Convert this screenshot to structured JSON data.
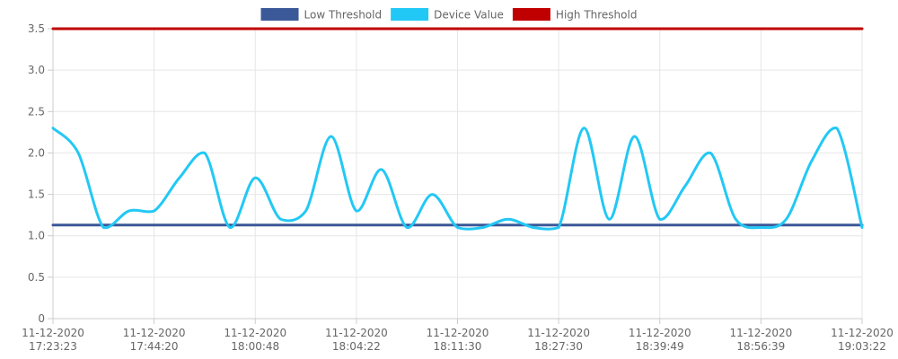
{
  "chart_data": {
    "type": "line",
    "title": "",
    "xlabel": "",
    "ylabel": "",
    "ylim": [
      0,
      3.5
    ],
    "yticks": [
      "0",
      "0.5",
      "1.0",
      "1.5",
      "2.0",
      "2.5",
      "3.0",
      "3.5"
    ],
    "ytick_values": [
      0,
      0.5,
      1.0,
      1.5,
      2.0,
      2.5,
      3.0,
      3.5
    ],
    "x_tick_labels": [
      {
        "date": "11-12-2020",
        "time": "17:23:23"
      },
      {
        "date": "11-12-2020",
        "time": "17:44:20"
      },
      {
        "date": "11-12-2020",
        "time": "18:00:48"
      },
      {
        "date": "11-12-2020",
        "time": "18:04:22"
      },
      {
        "date": "11-12-2020",
        "time": "18:11:30"
      },
      {
        "date": "11-12-2020",
        "time": "18:27:30"
      },
      {
        "date": "11-12-2020",
        "time": "18:39:49"
      },
      {
        "date": "11-12-2020",
        "time": "18:56:39"
      },
      {
        "date": "11-12-2020",
        "time": "19:03:22"
      }
    ],
    "point_count": 33,
    "legend": [
      "Low Threshold",
      "Device Value",
      "High Threshold"
    ],
    "series": [
      {
        "name": "Low Threshold",
        "color": "#3b5998",
        "values": [
          1.13,
          1.13,
          1.13,
          1.13,
          1.13,
          1.13,
          1.13,
          1.13,
          1.13,
          1.13,
          1.13,
          1.13,
          1.13,
          1.13,
          1.13,
          1.13,
          1.13,
          1.13,
          1.13,
          1.13,
          1.13,
          1.13,
          1.13,
          1.13,
          1.13,
          1.13,
          1.13,
          1.13,
          1.13,
          1.13,
          1.13,
          1.13,
          1.13
        ]
      },
      {
        "name": "Device Value",
        "color": "#22c8f5",
        "values": [
          2.3,
          2.0,
          1.1,
          1.3,
          1.3,
          1.7,
          2.0,
          1.1,
          1.7,
          1.2,
          1.3,
          2.2,
          1.3,
          1.8,
          1.1,
          1.5,
          1.1,
          1.1,
          1.2,
          1.1,
          1.1,
          2.3,
          1.2,
          2.2,
          1.2,
          1.6,
          2.0,
          1.2,
          1.1,
          1.2,
          1.9,
          2.3,
          1.1
        ]
      },
      {
        "name": "High Threshold",
        "color": "#c00000",
        "values": [
          3.5,
          3.5,
          3.5,
          3.5,
          3.5,
          3.5,
          3.5,
          3.5,
          3.5,
          3.5,
          3.5,
          3.5,
          3.5,
          3.5,
          3.5,
          3.5,
          3.5,
          3.5,
          3.5,
          3.5,
          3.5,
          3.5,
          3.5,
          3.5,
          3.5,
          3.5,
          3.5,
          3.5,
          3.5,
          3.5,
          3.5,
          3.5,
          3.5
        ]
      }
    ],
    "grid": true,
    "legend_position": "top-center"
  }
}
